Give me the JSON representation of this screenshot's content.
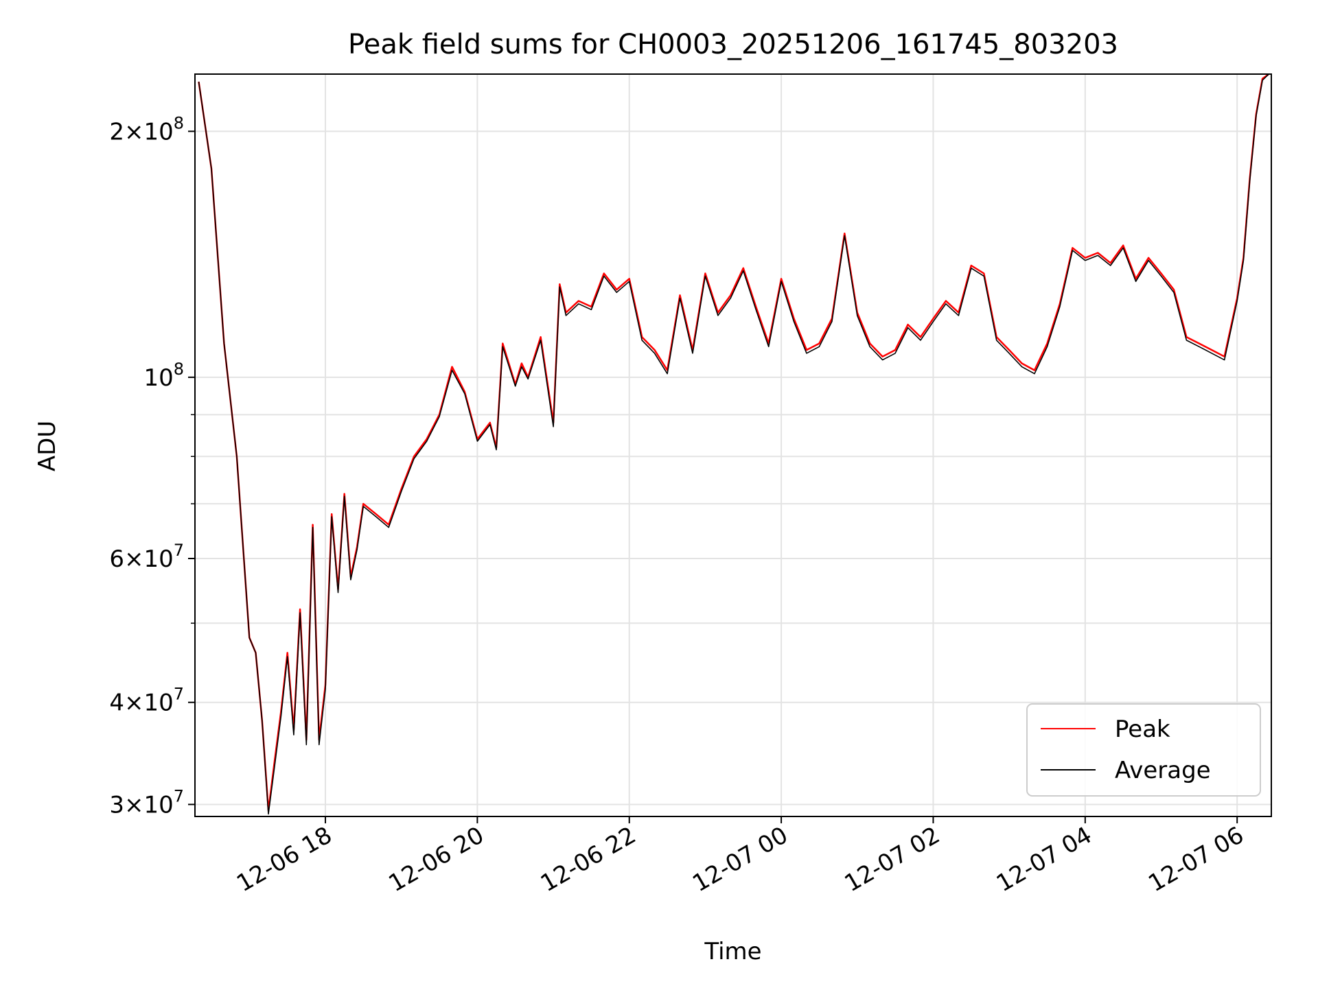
{
  "chart_data": {
    "type": "line",
    "title": "Peak field sums for CH0003_20251206_161745_803203",
    "xlabel": "Time",
    "ylabel": "ADU",
    "yscale": "log",
    "ylim": [
      29000000,
      235000000
    ],
    "xlim": [
      "2025-12-06 16:17",
      "2025-12-07 06:27"
    ],
    "grid": true,
    "legend_position": "lower-right",
    "x_ticks": [
      {
        "t": "2025-12-06 18:00",
        "label": "12-06 18"
      },
      {
        "t": "2025-12-06 20:00",
        "label": "12-06 20"
      },
      {
        "t": "2025-12-06 22:00",
        "label": "12-06 22"
      },
      {
        "t": "2025-12-07 00:00",
        "label": "12-07 00"
      },
      {
        "t": "2025-12-07 02:00",
        "label": "12-07 02"
      },
      {
        "t": "2025-12-07 04:00",
        "label": "12-07 04"
      },
      {
        "t": "2025-12-07 06:00",
        "label": "12-07 06"
      }
    ],
    "y_ticks": [
      {
        "value": 30000000,
        "mantissa": "3",
        "exponent": "7"
      },
      {
        "value": 40000000,
        "mantissa": "4",
        "exponent": "7"
      },
      {
        "value": 60000000,
        "mantissa": "6",
        "exponent": "7"
      },
      {
        "value": 100000000,
        "mantissa": "",
        "exponent": "8"
      },
      {
        "value": 200000000,
        "mantissa": "2",
        "exponent": "8"
      }
    ],
    "y_minor_ticks": [
      50000000,
      70000000,
      80000000,
      90000000
    ],
    "x": [
      "2025-12-06 16:20",
      "2025-12-06 16:30",
      "2025-12-06 16:40",
      "2025-12-06 16:50",
      "2025-12-06 17:00",
      "2025-12-06 17:05",
      "2025-12-06 17:10",
      "2025-12-06 17:15",
      "2025-12-06 17:20",
      "2025-12-06 17:25",
      "2025-12-06 17:30",
      "2025-12-06 17:35",
      "2025-12-06 17:40",
      "2025-12-06 17:45",
      "2025-12-06 17:50",
      "2025-12-06 17:55",
      "2025-12-06 18:00",
      "2025-12-06 18:05",
      "2025-12-06 18:10",
      "2025-12-06 18:15",
      "2025-12-06 18:20",
      "2025-12-06 18:25",
      "2025-12-06 18:30",
      "2025-12-06 18:40",
      "2025-12-06 18:50",
      "2025-12-06 19:00",
      "2025-12-06 19:10",
      "2025-12-06 19:20",
      "2025-12-06 19:30",
      "2025-12-06 19:40",
      "2025-12-06 19:50",
      "2025-12-06 20:00",
      "2025-12-06 20:10",
      "2025-12-06 20:15",
      "2025-12-06 20:20",
      "2025-12-06 20:30",
      "2025-12-06 20:35",
      "2025-12-06 20:40",
      "2025-12-06 20:50",
      "2025-12-06 21:00",
      "2025-12-06 21:05",
      "2025-12-06 21:10",
      "2025-12-06 21:20",
      "2025-12-06 21:30",
      "2025-12-06 21:40",
      "2025-12-06 21:50",
      "2025-12-06 22:00",
      "2025-12-06 22:10",
      "2025-12-06 22:20",
      "2025-12-06 22:30",
      "2025-12-06 22:40",
      "2025-12-06 22:50",
      "2025-12-06 23:00",
      "2025-12-06 23:10",
      "2025-12-06 23:20",
      "2025-12-06 23:30",
      "2025-12-06 23:40",
      "2025-12-06 23:50",
      "2025-12-07 00:00",
      "2025-12-07 00:10",
      "2025-12-07 00:20",
      "2025-12-07 00:30",
      "2025-12-07 00:40",
      "2025-12-07 00:50",
      "2025-12-07 01:00",
      "2025-12-07 01:10",
      "2025-12-07 01:20",
      "2025-12-07 01:30",
      "2025-12-07 01:40",
      "2025-12-07 01:50",
      "2025-12-07 02:00",
      "2025-12-07 02:10",
      "2025-12-07 02:20",
      "2025-12-07 02:30",
      "2025-12-07 02:40",
      "2025-12-07 02:50",
      "2025-12-07 03:00",
      "2025-12-07 03:10",
      "2025-12-07 03:20",
      "2025-12-07 03:30",
      "2025-12-07 03:40",
      "2025-12-07 03:50",
      "2025-12-07 04:00",
      "2025-12-07 04:10",
      "2025-12-07 04:20",
      "2025-12-07 04:30",
      "2025-12-07 04:40",
      "2025-12-07 04:50",
      "2025-12-07 05:00",
      "2025-12-07 05:10",
      "2025-12-07 05:20",
      "2025-12-07 05:30",
      "2025-12-07 05:40",
      "2025-12-07 05:50",
      "2025-12-07 06:00",
      "2025-12-07 06:05",
      "2025-12-07 06:10",
      "2025-12-07 06:15",
      "2025-12-07 06:20",
      "2025-12-07 06:25"
    ],
    "series": [
      {
        "name": "Peak",
        "color": "#ff0000",
        "values": [
          230000000,
          180000000,
          110000000,
          80000000,
          48000000,
          46000000,
          38000000,
          29500000,
          34000000,
          39000000,
          46000000,
          37000000,
          52000000,
          36000000,
          66000000,
          36000000,
          42000000,
          68000000,
          55000000,
          72000000,
          57000000,
          62000000,
          70000000,
          68000000,
          66000000,
          73000000,
          80000000,
          84000000,
          90000000,
          103000000,
          96000000,
          84000000,
          88000000,
          82000000,
          110000000,
          98000000,
          104000000,
          100000000,
          112000000,
          88000000,
          130000000,
          120000000,
          124000000,
          122000000,
          134000000,
          128000000,
          132000000,
          112000000,
          108000000,
          102000000,
          126000000,
          108000000,
          134000000,
          120000000,
          126000000,
          136000000,
          122000000,
          110000000,
          132000000,
          118000000,
          108000000,
          110000000,
          118000000,
          150000000,
          120000000,
          110000000,
          106000000,
          108000000,
          116000000,
          112000000,
          118000000,
          124000000,
          120000000,
          137000000,
          134000000,
          112000000,
          108000000,
          104000000,
          102000000,
          110000000,
          123000000,
          144000000,
          140000000,
          142000000,
          138000000,
          145000000,
          132000000,
          140000000,
          134000000,
          128000000,
          112000000,
          110000000,
          108000000,
          106000000,
          125000000,
          140000000,
          175000000,
          210000000,
          232000000,
          235000000
        ]
      },
      {
        "name": "Average",
        "color": "#000000",
        "values": [
          230000000,
          180000000,
          110000000,
          80000000,
          48000000,
          46000000,
          38000000,
          29200000,
          33500000,
          38500000,
          45500000,
          36500000,
          51500000,
          35500000,
          65500000,
          35500000,
          41500000,
          67500000,
          54500000,
          71500000,
          56500000,
          61500000,
          69500000,
          67500000,
          65500000,
          72500000,
          79500000,
          83500000,
          89500000,
          102000000,
          95500000,
          83500000,
          87500000,
          81500000,
          109000000,
          97500000,
          103000000,
          99500000,
          111000000,
          87000000,
          129000000,
          119000000,
          123000000,
          121000000,
          133000000,
          127000000,
          131000000,
          111000000,
          107000000,
          101000000,
          125000000,
          107000000,
          133000000,
          119000000,
          125000000,
          135000000,
          121000000,
          109000000,
          131000000,
          117000000,
          107000000,
          109000000,
          117000000,
          149000000,
          119000000,
          109000000,
          105000000,
          107000000,
          115000000,
          111000000,
          117000000,
          123000000,
          119000000,
          136000000,
          133000000,
          111000000,
          107000000,
          103000000,
          101000000,
          109000000,
          122000000,
          143000000,
          139000000,
          141000000,
          137000000,
          144000000,
          131000000,
          139000000,
          133000000,
          127000000,
          111000000,
          109000000,
          107000000,
          105000000,
          124000000,
          139000000,
          174000000,
          209000000,
          231000000,
          235000000
        ]
      }
    ]
  }
}
